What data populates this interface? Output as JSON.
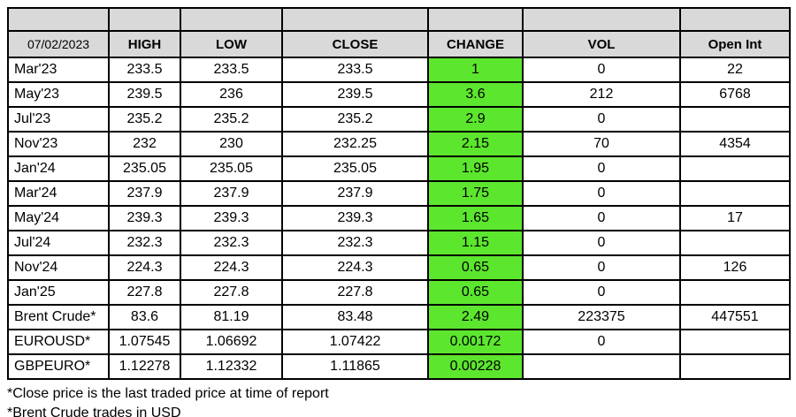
{
  "table": {
    "date": "07/02/2023",
    "columns": [
      "HIGH",
      "LOW",
      "CLOSE",
      "CHANGE",
      "VOL",
      "Open Int"
    ],
    "rows": [
      {
        "label": "Mar'23",
        "high": "233.5",
        "low": "233.5",
        "close": "233.5",
        "change": "1",
        "vol": "0",
        "open_int": "22"
      },
      {
        "label": "May'23",
        "high": "239.5",
        "low": "236",
        "close": "239.5",
        "change": "3.6",
        "vol": "212",
        "open_int": "6768"
      },
      {
        "label": "Jul'23",
        "high": "235.2",
        "low": "235.2",
        "close": "235.2",
        "change": "2.9",
        "vol": "0",
        "open_int": ""
      },
      {
        "label": "Nov'23",
        "high": "232",
        "low": "230",
        "close": "232.25",
        "change": "2.15",
        "vol": "70",
        "open_int": "4354"
      },
      {
        "label": "Jan'24",
        "high": "235.05",
        "low": "235.05",
        "close": "235.05",
        "change": "1.95",
        "vol": "0",
        "open_int": ""
      },
      {
        "label": "Mar'24",
        "high": "237.9",
        "low": "237.9",
        "close": "237.9",
        "change": "1.75",
        "vol": "0",
        "open_int": ""
      },
      {
        "label": "May'24",
        "high": "239.3",
        "low": "239.3",
        "close": "239.3",
        "change": "1.65",
        "vol": "0",
        "open_int": "17"
      },
      {
        "label": "Jul'24",
        "high": "232.3",
        "low": "232.3",
        "close": "232.3",
        "change": "1.15",
        "vol": "0",
        "open_int": ""
      },
      {
        "label": "Nov'24",
        "high": "224.3",
        "low": "224.3",
        "close": "224.3",
        "change": "0.65",
        "vol": "0",
        "open_int": "126"
      },
      {
        "label": "Jan'25",
        "high": "227.8",
        "low": "227.8",
        "close": "227.8",
        "change": "0.65",
        "vol": "0",
        "open_int": ""
      },
      {
        "label": "Brent Crude*",
        "high": "83.6",
        "low": "81.19",
        "close": "83.48",
        "change": "2.49",
        "vol": "223375",
        "open_int": "447551"
      },
      {
        "label": "EUROUSD*",
        "high": "1.07545",
        "low": "1.06692",
        "close": "1.07422",
        "change": "0.00172",
        "vol": "0",
        "open_int": ""
      },
      {
        "label": "GBPEURO*",
        "high": "1.12278",
        "low": "1.12332",
        "close": "1.11865",
        "change": "0.00228",
        "vol": "",
        "open_int": ""
      }
    ]
  },
  "footnotes": [
    "*Close price is the last traded price at time of report",
    "*Brent Crude trades in USD"
  ],
  "colors": {
    "header_bg": "#d9d9d9",
    "change_bg": "#5ce62e",
    "border": "#000000"
  },
  "chart_data": {
    "type": "table",
    "title": "07/02/2023 futures price report",
    "columns": [
      "",
      "HIGH",
      "LOW",
      "CLOSE",
      "CHANGE",
      "VOL",
      "Open Int"
    ],
    "rows": [
      [
        "Mar'23",
        233.5,
        233.5,
        233.5,
        1,
        0,
        22
      ],
      [
        "May'23",
        239.5,
        236,
        239.5,
        3.6,
        212,
        6768
      ],
      [
        "Jul'23",
        235.2,
        235.2,
        235.2,
        2.9,
        0,
        null
      ],
      [
        "Nov'23",
        232,
        230,
        232.25,
        2.15,
        70,
        4354
      ],
      [
        "Jan'24",
        235.05,
        235.05,
        235.05,
        1.95,
        0,
        null
      ],
      [
        "Mar'24",
        237.9,
        237.9,
        237.9,
        1.75,
        0,
        null
      ],
      [
        "May'24",
        239.3,
        239.3,
        239.3,
        1.65,
        0,
        17
      ],
      [
        "Jul'24",
        232.3,
        232.3,
        232.3,
        1.15,
        0,
        null
      ],
      [
        "Nov'24",
        224.3,
        224.3,
        224.3,
        0.65,
        0,
        126
      ],
      [
        "Jan'25",
        227.8,
        227.8,
        227.8,
        0.65,
        0,
        null
      ],
      [
        "Brent Crude*",
        83.6,
        81.19,
        83.48,
        2.49,
        223375,
        447551
      ],
      [
        "EUROUSD*",
        1.07545,
        1.06692,
        1.07422,
        0.00172,
        0,
        null
      ],
      [
        "GBPEURO*",
        1.12278,
        1.12332,
        1.11865,
        0.00228,
        null,
        null
      ]
    ]
  }
}
